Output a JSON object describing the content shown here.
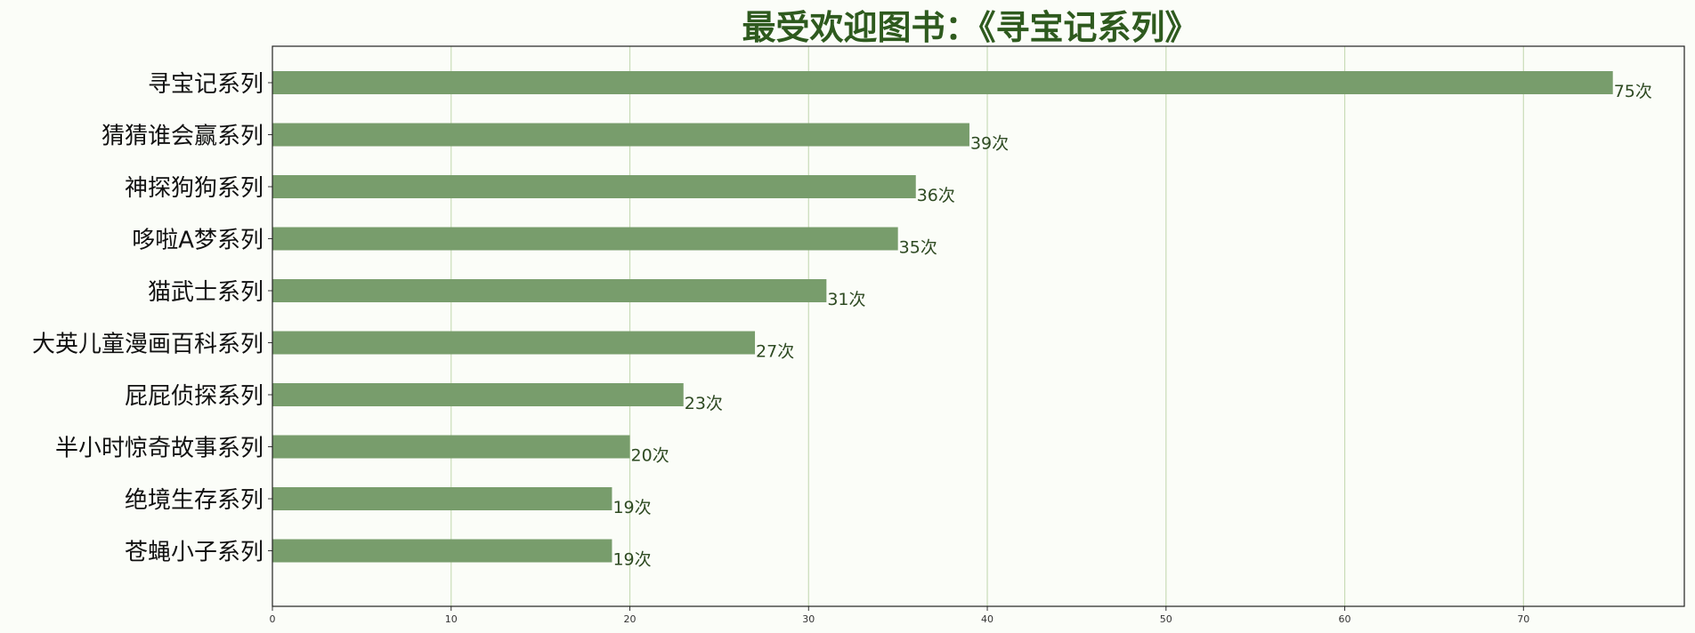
{
  "chart_data": {
    "type": "bar",
    "orientation": "horizontal",
    "title": "最受欢迎图书：《寻宝记系列》",
    "xlabel": "",
    "ylabel": "",
    "xlim": [
      0,
      79
    ],
    "xticks": [
      0,
      10,
      20,
      30,
      40,
      50,
      60,
      70
    ],
    "grid": "vertical",
    "categories": [
      "寻宝记系列",
      "猜猜谁会赢系列",
      "神探狗狗系列",
      "哆啦A梦系列",
      "猫武士系列",
      "大英儿童漫画百科系列",
      "屁屁侦探系列",
      "半小时惊奇故事系列",
      "绝境生存系列",
      "苍蝇小子系列"
    ],
    "values": [
      75,
      39,
      36,
      35,
      31,
      27,
      23,
      20,
      19,
      19
    ],
    "value_labels": [
      "75次",
      "39次",
      "36次",
      "35次",
      "31次",
      "27次",
      "23次",
      "20次",
      "19次",
      "19次"
    ],
    "colors": {
      "bar": "#789d6c",
      "title": "#2e5a1e",
      "grid": "#c9dcb8",
      "label": "#2e4a22"
    }
  }
}
